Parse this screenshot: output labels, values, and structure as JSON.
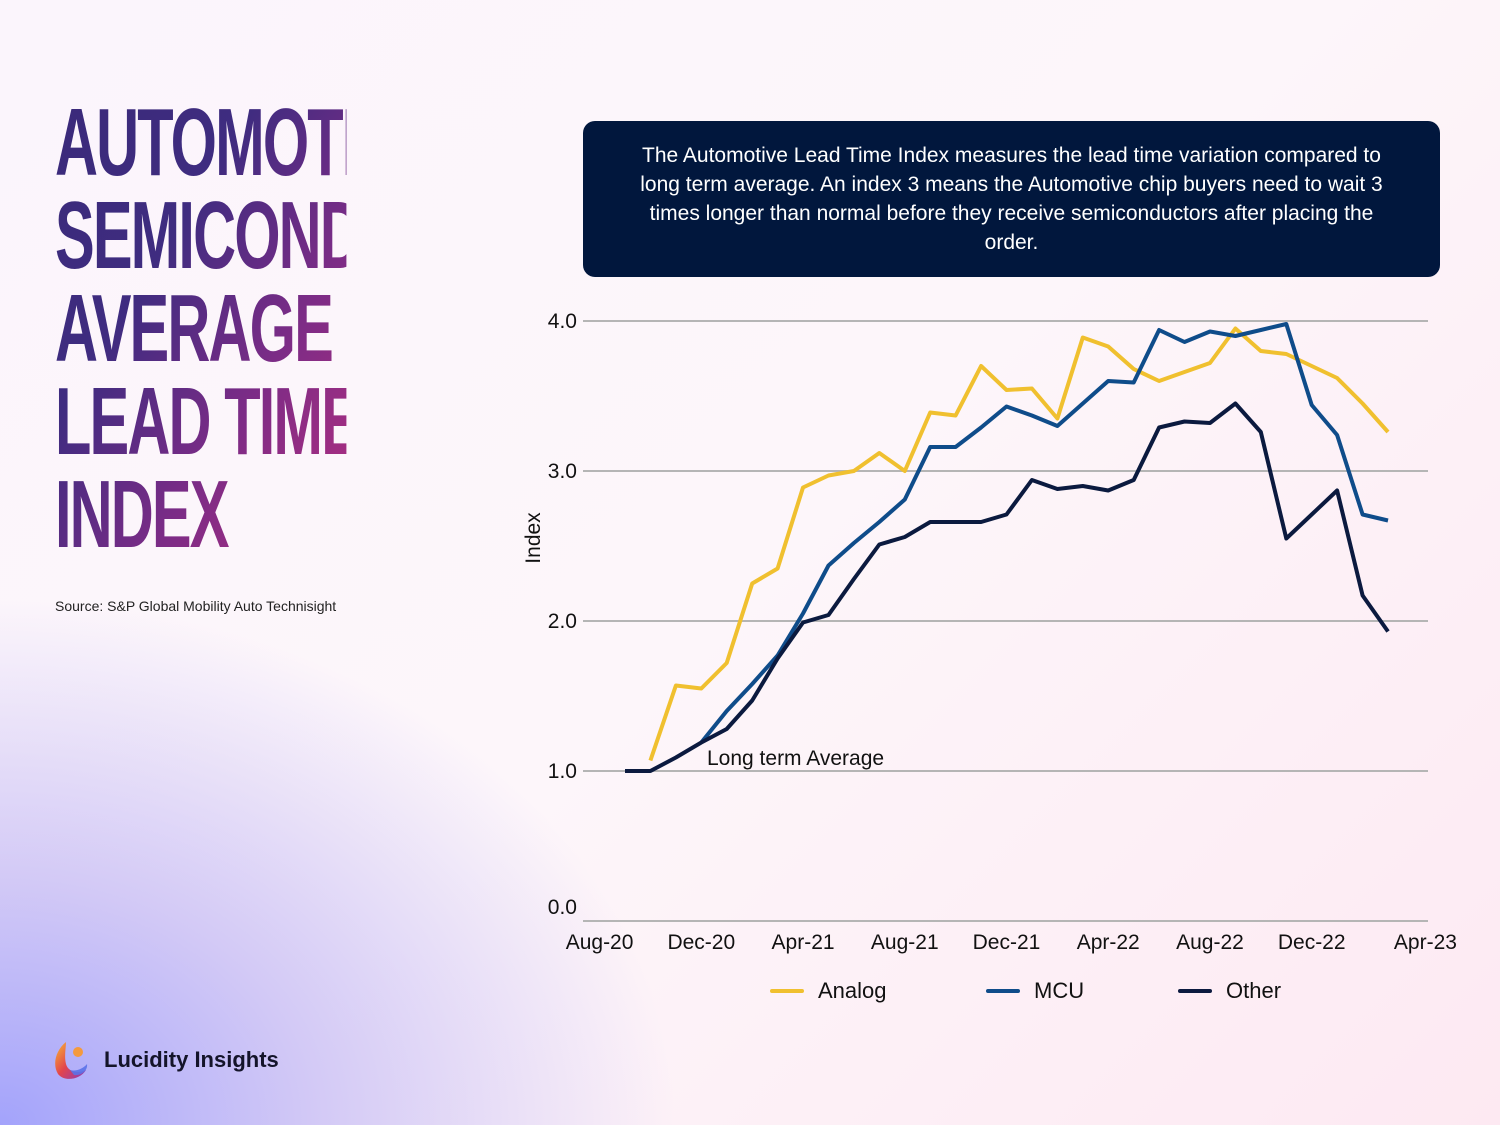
{
  "title_lines": [
    "AUTOMOTIVE",
    "SEMICONDUCTOR",
    "AVERAGE",
    "LEAD TIME",
    "INDEX"
  ],
  "source": "Source: S&P Global Mobility Auto Technisight",
  "brand": {
    "name": "Lucidity Insights",
    "icon": "lucidity-logo-icon"
  },
  "info_box": "The Automotive Lead Time Index measures the lead time variation compared to long term average. An index 3 means the Automotive chip buyers need to wait 3 times longer than normal before they receive semiconductors after placing the order.",
  "chart_data": {
    "type": "line",
    "title": "",
    "xlabel": "",
    "ylabel": "Index",
    "ylim": [
      0,
      4
    ],
    "yticks": [
      "0.0",
      "1.0",
      "2.0",
      "3.0",
      "4.0"
    ],
    "xtick_labels": [
      "Aug-20",
      "Dec-20",
      "Apr-21",
      "Aug-21",
      "Dec-21",
      "Apr-22",
      "Aug-22",
      "Dec-22",
      "Apr-23"
    ],
    "grid": true,
    "legend_position": "bottom",
    "annotation": {
      "text": "Long term Average",
      "value": 1.0
    },
    "x": [
      "Sep-20",
      "Oct-20",
      "Nov-20",
      "Dec-20",
      "Jan-21",
      "Feb-21",
      "Mar-21",
      "Apr-21",
      "May-21",
      "Jun-21",
      "Jul-21",
      "Aug-21",
      "Sep-21",
      "Oct-21",
      "Nov-21",
      "Dec-21",
      "Jan-22",
      "Feb-22",
      "Mar-22",
      "Apr-22",
      "May-22",
      "Jun-22",
      "Jul-22",
      "Aug-22",
      "Sep-22",
      "Oct-22",
      "Nov-22",
      "Dec-22",
      "Jan-23",
      "Feb-23",
      "Mar-23"
    ],
    "series": [
      {
        "name": "Analog",
        "color": "#f0c02f",
        "values": [
          null,
          1.07,
          1.57,
          1.55,
          1.72,
          2.25,
          2.35,
          2.89,
          2.97,
          3.0,
          3.12,
          3.0,
          3.39,
          3.37,
          3.7,
          3.54,
          3.55,
          3.35,
          3.89,
          3.83,
          3.68,
          3.6,
          3.66,
          3.72,
          3.95,
          3.8,
          3.78,
          3.7,
          3.62,
          3.45,
          3.26
        ]
      },
      {
        "name": "MCU",
        "color": "#0f4c8a",
        "values": [
          null,
          null,
          null,
          1.19,
          1.4,
          1.58,
          1.77,
          2.05,
          2.37,
          2.52,
          2.66,
          2.81,
          3.16,
          3.16,
          3.29,
          3.43,
          3.37,
          3.3,
          3.45,
          3.6,
          3.59,
          3.94,
          3.86,
          3.93,
          3.9,
          3.94,
          3.98,
          3.44,
          3.24,
          2.71,
          2.67
        ]
      },
      {
        "name": "Other",
        "color": "#0b1a3f",
        "values": [
          1.0,
          1.0,
          1.09,
          1.19,
          1.28,
          1.47,
          1.75,
          1.99,
          2.04,
          2.28,
          2.51,
          2.56,
          2.66,
          2.66,
          2.66,
          2.71,
          2.94,
          2.88,
          2.9,
          2.87,
          2.94,
          3.29,
          3.33,
          3.32,
          3.45,
          3.26,
          2.55,
          2.71,
          2.87,
          2.17,
          1.93
        ]
      }
    ]
  }
}
